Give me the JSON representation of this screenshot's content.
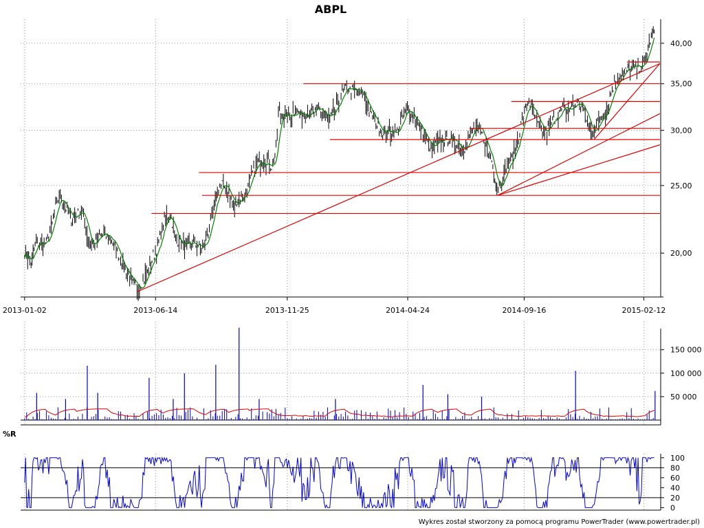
{
  "title": "ABPL",
  "footer": "Wykres został stworzony za pomocą programu PowerTrader (www.powertrader.pl)",
  "colors": {
    "bars": "#000000",
    "moving_average": "#008000",
    "support_lines": "#e00000",
    "trend_lines": "#e00000",
    "volume": "#0000cc",
    "volume_average": "#e00000",
    "williams_r": "#0000dd",
    "grid": "#999999"
  },
  "chart_data": [
    {
      "type": "ohlc",
      "panel": "price",
      "title": "ABPL",
      "x_tick_labels": [
        "2013-01-02",
        "2013-06-14",
        "2013-11-25",
        "2014-04-24",
        "2014-09-16",
        "2015-02-12"
      ],
      "y_tick_labels": [
        "20,00",
        "25,00",
        "30,00",
        "35,00",
        "40,00"
      ],
      "y_ticks": [
        20,
        25,
        30,
        35,
        40
      ],
      "y_scale": "log",
      "ylim": [
        17.3,
        43.3
      ],
      "x_range": [
        "2012-12-28",
        "2015-03-05"
      ],
      "grid": true,
      "close_points": [
        {
          "x": "2013-01-02",
          "y": 20.0
        },
        {
          "x": "2013-01-07",
          "y": 19.6
        },
        {
          "x": "2013-01-10",
          "y": 19.3
        },
        {
          "x": "2013-01-15",
          "y": 20.6
        },
        {
          "x": "2013-01-22",
          "y": 20.6
        },
        {
          "x": "2013-01-29",
          "y": 20.7
        },
        {
          "x": "2013-02-04",
          "y": 21.6
        },
        {
          "x": "2013-02-08",
          "y": 22.8
        },
        {
          "x": "2013-02-14",
          "y": 24.2
        },
        {
          "x": "2013-02-21",
          "y": 23.4
        },
        {
          "x": "2013-02-28",
          "y": 22.4
        },
        {
          "x": "2013-03-08",
          "y": 22.8
        },
        {
          "x": "2013-03-15",
          "y": 23.0
        },
        {
          "x": "2013-03-22",
          "y": 20.9
        },
        {
          "x": "2013-03-29",
          "y": 20.5
        },
        {
          "x": "2013-04-05",
          "y": 21.2
        },
        {
          "x": "2013-04-12",
          "y": 21.2
        },
        {
          "x": "2013-04-19",
          "y": 21.0
        },
        {
          "x": "2013-04-26",
          "y": 20.3
        },
        {
          "x": "2013-05-03",
          "y": 19.3
        },
        {
          "x": "2013-05-10",
          "y": 18.7
        },
        {
          "x": "2013-05-17",
          "y": 18.0
        },
        {
          "x": "2013-05-22",
          "y": 17.8
        },
        {
          "x": "2013-05-28",
          "y": 18.1
        },
        {
          "x": "2013-06-04",
          "y": 18.8
        },
        {
          "x": "2013-06-11",
          "y": 19.8
        },
        {
          "x": "2013-06-18",
          "y": 20.6
        },
        {
          "x": "2013-06-25",
          "y": 22.3
        },
        {
          "x": "2013-07-02",
          "y": 22.8
        },
        {
          "x": "2013-07-09",
          "y": 21.0
        },
        {
          "x": "2013-07-16",
          "y": 20.7
        },
        {
          "x": "2013-07-23",
          "y": 20.4
        },
        {
          "x": "2013-07-30",
          "y": 20.6
        },
        {
          "x": "2013-08-06",
          "y": 20.5
        },
        {
          "x": "2013-08-13",
          "y": 20.3
        },
        {
          "x": "2013-08-20",
          "y": 21.8
        },
        {
          "x": "2013-08-26",
          "y": 23.2
        },
        {
          "x": "2013-08-30",
          "y": 24.5
        },
        {
          "x": "2013-09-05",
          "y": 25.2
        },
        {
          "x": "2013-09-12",
          "y": 24.6
        },
        {
          "x": "2013-09-19",
          "y": 23.3
        },
        {
          "x": "2013-09-26",
          "y": 24.0
        },
        {
          "x": "2013-10-03",
          "y": 24.2
        },
        {
          "x": "2013-10-10",
          "y": 25.5
        },
        {
          "x": "2013-10-17",
          "y": 26.7
        },
        {
          "x": "2013-10-24",
          "y": 27.2
        },
        {
          "x": "2013-10-31",
          "y": 27.0
        },
        {
          "x": "2013-11-07",
          "y": 26.6
        },
        {
          "x": "2013-11-11",
          "y": 28.2
        },
        {
          "x": "2013-11-14",
          "y": 31.9
        },
        {
          "x": "2013-11-21",
          "y": 31.5
        },
        {
          "x": "2013-11-28",
          "y": 31.4
        },
        {
          "x": "2013-12-05",
          "y": 32.1
        },
        {
          "x": "2013-12-12",
          "y": 31.6
        },
        {
          "x": "2013-12-19",
          "y": 31.9
        },
        {
          "x": "2013-12-27",
          "y": 31.7
        },
        {
          "x": "2014-01-03",
          "y": 32.2
        },
        {
          "x": "2014-01-10",
          "y": 31.6
        },
        {
          "x": "2014-01-17",
          "y": 31.0
        },
        {
          "x": "2014-01-24",
          "y": 32.1
        },
        {
          "x": "2014-01-31",
          "y": 33.6
        },
        {
          "x": "2014-02-07",
          "y": 34.5
        },
        {
          "x": "2014-02-14",
          "y": 34.2
        },
        {
          "x": "2014-02-21",
          "y": 34.1
        },
        {
          "x": "2014-02-28",
          "y": 33.6
        },
        {
          "x": "2014-03-07",
          "y": 32.0
        },
        {
          "x": "2014-03-14",
          "y": 30.9
        },
        {
          "x": "2014-03-21",
          "y": 30.1
        },
        {
          "x": "2014-03-28",
          "y": 29.9
        },
        {
          "x": "2014-04-04",
          "y": 29.9
        },
        {
          "x": "2014-04-11",
          "y": 29.8
        },
        {
          "x": "2014-04-18",
          "y": 31.4
        },
        {
          "x": "2014-04-25",
          "y": 32.2
        },
        {
          "x": "2014-05-02",
          "y": 31.3
        },
        {
          "x": "2014-05-09",
          "y": 30.3
        },
        {
          "x": "2014-05-16",
          "y": 29.2
        },
        {
          "x": "2014-05-23",
          "y": 28.2
        },
        {
          "x": "2014-05-30",
          "y": 28.6
        },
        {
          "x": "2014-06-06",
          "y": 29.1
        },
        {
          "x": "2014-06-13",
          "y": 29.3
        },
        {
          "x": "2014-06-20",
          "y": 29.0
        },
        {
          "x": "2014-06-27",
          "y": 28.6
        },
        {
          "x": "2014-07-04",
          "y": 28.4
        },
        {
          "x": "2014-07-11",
          "y": 29.6
        },
        {
          "x": "2014-07-18",
          "y": 30.2
        },
        {
          "x": "2014-07-25",
          "y": 29.7
        },
        {
          "x": "2014-08-01",
          "y": 28.1
        },
        {
          "x": "2014-08-08",
          "y": 26.9
        },
        {
          "x": "2014-08-13",
          "y": 24.7
        },
        {
          "x": "2014-08-19",
          "y": 25.5
        },
        {
          "x": "2014-08-26",
          "y": 26.7
        },
        {
          "x": "2014-09-02",
          "y": 27.4
        },
        {
          "x": "2014-09-09",
          "y": 29.5
        },
        {
          "x": "2014-09-15",
          "y": 31.4
        },
        {
          "x": "2014-09-22",
          "y": 33.0
        },
        {
          "x": "2014-09-29",
          "y": 31.3
        },
        {
          "x": "2014-10-06",
          "y": 30.1
        },
        {
          "x": "2014-10-13",
          "y": 29.7
        },
        {
          "x": "2014-10-20",
          "y": 30.8
        },
        {
          "x": "2014-10-27",
          "y": 31.5
        },
        {
          "x": "2014-11-03",
          "y": 32.3
        },
        {
          "x": "2014-11-10",
          "y": 32.0
        },
        {
          "x": "2014-11-17",
          "y": 32.6
        },
        {
          "x": "2014-11-24",
          "y": 32.9
        },
        {
          "x": "2014-12-01",
          "y": 31.6
        },
        {
          "x": "2014-12-08",
          "y": 29.8
        },
        {
          "x": "2014-12-15",
          "y": 30.4
        },
        {
          "x": "2014-12-22",
          "y": 31.5
        },
        {
          "x": "2014-12-29",
          "y": 32.6
        },
        {
          "x": "2015-01-05",
          "y": 34.7
        },
        {
          "x": "2015-01-12",
          "y": 35.8
        },
        {
          "x": "2015-01-19",
          "y": 36.4
        },
        {
          "x": "2015-01-26",
          "y": 36.8
        },
        {
          "x": "2015-02-02",
          "y": 37.0
        },
        {
          "x": "2015-02-09",
          "y": 37.0
        },
        {
          "x": "2015-02-16",
          "y": 38.3
        },
        {
          "x": "2015-02-20",
          "y": 40.5
        },
        {
          "x": "2015-02-25",
          "y": 41.7
        }
      ],
      "support_levels": [
        {
          "y": 22.8,
          "from": "2013-06-09",
          "to": "2015-03-04"
        },
        {
          "y": 24.2,
          "from": "2013-08-11",
          "to": "2015-03-04"
        },
        {
          "y": 26.1,
          "from": "2013-08-07",
          "to": "2015-03-04"
        },
        {
          "y": 29.1,
          "from": "2014-01-17",
          "to": "2015-03-04"
        },
        {
          "y": 30.2,
          "from": "2014-07-10",
          "to": "2015-03-04"
        },
        {
          "y": 33.0,
          "from": "2014-08-31",
          "to": "2015-03-04"
        },
        {
          "y": 35.0,
          "from": "2013-12-15",
          "to": "2015-03-04"
        },
        {
          "y": 37.6,
          "from": "2015-01-22",
          "to": "2015-03-04"
        }
      ],
      "trend_lines": [
        {
          "from": {
            "x": "2013-05-22",
            "y": 17.6
          },
          "to": {
            "x": "2015-03-04",
            "y": 37.4
          }
        },
        {
          "from": {
            "x": "2014-08-14",
            "y": 24.2
          },
          "to": {
            "x": "2015-03-04",
            "y": 31.7
          }
        },
        {
          "from": {
            "x": "2014-08-14",
            "y": 24.2
          },
          "to": {
            "x": "2015-03-04",
            "y": 28.6
          }
        },
        {
          "from": {
            "x": "2014-12-12",
            "y": 29.1
          },
          "to": {
            "x": "2015-03-04",
            "y": 37.4
          }
        }
      ]
    },
    {
      "type": "bar",
      "panel": "volume",
      "y_tick_labels": [
        "50 000",
        "100 000",
        "150 000"
      ],
      "y_ticks": [
        50000,
        100000,
        150000
      ],
      "ylim": [
        0,
        195000
      ],
      "spikes": [
        {
          "x": "2013-01-17",
          "y": 58000
        },
        {
          "x": "2013-02-22",
          "y": 45000
        },
        {
          "x": "2013-03-21",
          "y": 116000
        },
        {
          "x": "2013-04-03",
          "y": 58000
        },
        {
          "x": "2013-06-06",
          "y": 90000
        },
        {
          "x": "2013-07-06",
          "y": 45000
        },
        {
          "x": "2013-07-20",
          "y": 100000
        },
        {
          "x": "2013-08-28",
          "y": 118000
        },
        {
          "x": "2013-09-26",
          "y": 197000
        },
        {
          "x": "2013-10-21",
          "y": 45000
        },
        {
          "x": "2014-01-24",
          "y": 45000
        },
        {
          "x": "2014-05-13",
          "y": 75000
        },
        {
          "x": "2014-06-13",
          "y": 55000
        },
        {
          "x": "2014-07-25",
          "y": 50000
        },
        {
          "x": "2014-11-19",
          "y": 105000
        },
        {
          "x": "2015-02-26",
          "y": 62000
        }
      ]
    },
    {
      "type": "line",
      "panel": "indicator",
      "label": "%R",
      "y_tick_labels": [
        "0",
        "20",
        "40",
        "60",
        "80",
        "100"
      ],
      "y_ticks": [
        0,
        20,
        40,
        60,
        80,
        100
      ],
      "reference_lines": [
        20,
        80
      ],
      "ylim": [
        -5,
        108
      ]
    }
  ]
}
